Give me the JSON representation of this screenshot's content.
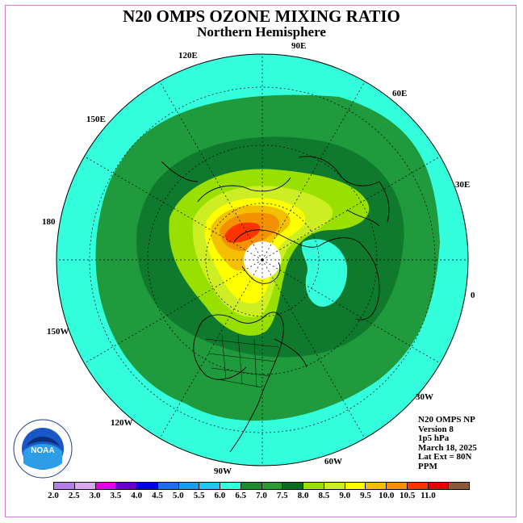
{
  "header": {
    "title": "N20 OMPS OZONE MIXING RATIO",
    "subtitle": "Northern Hemisphere"
  },
  "longitude_labels": [
    {
      "id": "90e",
      "text": "90E"
    },
    {
      "id": "120e",
      "text": "120E"
    },
    {
      "id": "60e",
      "text": "60E"
    },
    {
      "id": "150e",
      "text": "150E"
    },
    {
      "id": "30e",
      "text": "30E"
    },
    {
      "id": "180",
      "text": "180"
    },
    {
      "id": "0",
      "text": "0"
    },
    {
      "id": "150w",
      "text": "150W"
    },
    {
      "id": "30w",
      "text": "30W"
    },
    {
      "id": "120w",
      "text": "120W"
    },
    {
      "id": "60w",
      "text": "60W"
    },
    {
      "id": "90w",
      "text": "90W"
    }
  ],
  "info": [
    "N20 OMPS NP",
    "Version 8",
    "1p5 hPa",
    "March 18, 2025",
    "Lat Ext = 80N",
    "PPM"
  ],
  "colorbar": {
    "ticks": [
      "2.0",
      "2.5",
      "3.0",
      "3.5",
      "4.0",
      "4.5",
      "5.0",
      "5.5",
      "6.0",
      "6.5",
      "7.0",
      "7.5",
      "8.0",
      "8.5",
      "9.0",
      "9.5",
      "10.0",
      "10.5",
      "11.0"
    ],
    "colors": [
      "#b47ee6",
      "#d9a6f0",
      "#e600e6",
      "#6a00c8",
      "#0000e6",
      "#1f6fe6",
      "#1e9be6",
      "#22c4f0",
      "#33ffdd",
      "#1a8c2e",
      "#2b9a30",
      "#0b6b25",
      "#99e000",
      "#ccee22",
      "#ffff00",
      "#f3bf00",
      "#f39100",
      "#ff3300",
      "#e60000",
      "#8c5a3a"
    ]
  },
  "logo": {
    "text": "NOAA"
  },
  "map": {
    "projection": "north polar stereographic",
    "center_latitude": 90,
    "latitude_extent": "80N"
  }
}
